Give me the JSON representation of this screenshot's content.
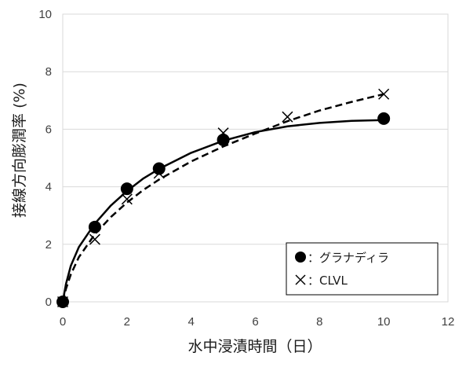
{
  "chart_data": {
    "type": "scatter",
    "xlabel": "水中浸漬時間（日）",
    "ylabel": "接線方向膨潤率 (%)",
    "xlim": [
      0,
      12
    ],
    "ylim": [
      0,
      10
    ],
    "x_ticks": [
      0,
      2,
      4,
      6,
      8,
      10,
      12
    ],
    "y_ticks": [
      0,
      2,
      4,
      6,
      8,
      10
    ],
    "grid": "horizontal",
    "legend_position": "bottom-right",
    "series": [
      {
        "name": "：グラナディラ",
        "marker": "filled-circle",
        "line_style": "solid",
        "color": "#000000",
        "x": [
          0,
          1,
          2,
          3,
          5,
          10
        ],
        "y": [
          0.0,
          2.6,
          3.93,
          4.63,
          5.63,
          6.37
        ],
        "fit_curve": {
          "x": [
            0,
            0.1,
            0.25,
            0.5,
            1,
            1.5,
            2,
            2.5,
            3,
            4,
            5,
            6,
            7,
            8,
            9,
            10
          ],
          "y": [
            0,
            0.62,
            1.25,
            1.9,
            2.72,
            3.35,
            3.85,
            4.28,
            4.62,
            5.18,
            5.6,
            5.9,
            6.1,
            6.22,
            6.29,
            6.32
          ]
        }
      },
      {
        "name": "：CLVL",
        "marker": "x",
        "line_style": "dashed",
        "color": "#000000",
        "x": [
          0,
          1,
          2,
          3,
          5,
          7,
          10
        ],
        "y": [
          0.0,
          2.17,
          3.57,
          4.47,
          5.87,
          6.43,
          7.22
        ],
        "fit_curve": {
          "x": [
            0,
            0.1,
            0.25,
            0.5,
            1,
            1.5,
            2,
            2.5,
            3,
            4,
            5,
            6,
            7,
            8,
            9,
            10
          ],
          "y": [
            0,
            0.45,
            0.95,
            1.55,
            2.35,
            2.95,
            3.45,
            3.88,
            4.25,
            4.88,
            5.4,
            5.85,
            6.28,
            6.65,
            6.95,
            7.22
          ]
        }
      }
    ]
  }
}
